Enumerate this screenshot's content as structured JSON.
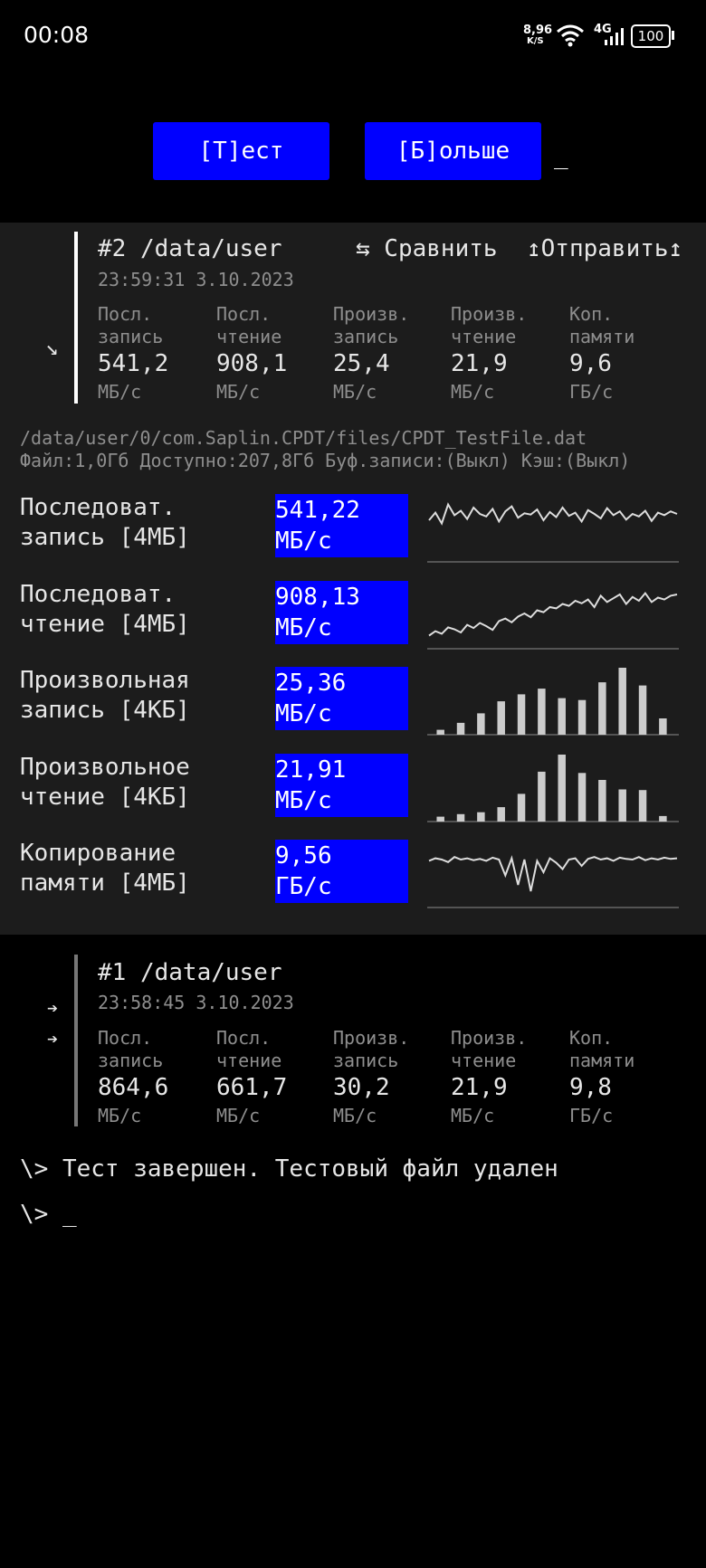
{
  "status_bar": {
    "time": "00:08",
    "net_speed": "8,96",
    "net_unit": "K/S",
    "network": "4G",
    "battery": "100"
  },
  "buttons": [
    "[Т]ест",
    "[Б]ольше"
  ],
  "cursor": "_",
  "current_result": {
    "title": "#2 /data/user",
    "date": "23:59:31 3.10.2023",
    "actions": [
      "⇆ Сравнить",
      "↥Отправить↥"
    ],
    "arrow": "↘",
    "metrics": [
      {
        "label": [
          "Посл.",
          "запись"
        ],
        "value": "541,2",
        "unit": "МБ/с"
      },
      {
        "label": [
          "Посл.",
          "чтение"
        ],
        "value": "908,1",
        "unit": "МБ/с"
      },
      {
        "label": [
          "Произв.",
          "запись"
        ],
        "value": "25,4",
        "unit": "МБ/с"
      },
      {
        "label": [
          "Произв.",
          "чтение"
        ],
        "value": "21,9",
        "unit": "МБ/с"
      },
      {
        "label": [
          "Коп.",
          "памяти"
        ],
        "value": "9,6",
        "unit": "ГБ/с"
      }
    ]
  },
  "file_info": [
    "/data/user/0/com.Saplin.CPDT/files/CPDT_TestFile.dat",
    "Файл:1,0Гб Доступно:207,8Гб Буф.записи:(Выкл) Кэш:(Выкл)"
  ],
  "tests": [
    {
      "label": [
        "Последоват.",
        "запись [4МБ]"
      ],
      "result": [
        "541,22",
        "МБ/с"
      ],
      "chart": {
        "type": "line",
        "ylim": [
          0,
          100
        ],
        "values": [
          60,
          72,
          55,
          85,
          68,
          75,
          62,
          80,
          70,
          66,
          78,
          58,
          74,
          82,
          64,
          71,
          69,
          77,
          60,
          73,
          65,
          80,
          67,
          72,
          58,
          76,
          70,
          63,
          79,
          68,
          74,
          61,
          70,
          66,
          75,
          59,
          72,
          68,
          74,
          70
        ]
      }
    },
    {
      "label": [
        "Последоват.",
        "чтение [4МБ]"
      ],
      "result": [
        "908,13",
        "МБ/с"
      ],
      "chart": {
        "type": "line",
        "ylim": [
          0,
          100
        ],
        "values": [
          15,
          22,
          18,
          28,
          25,
          20,
          32,
          27,
          35,
          30,
          24,
          38,
          42,
          36,
          45,
          50,
          44,
          55,
          52,
          60,
          58,
          65,
          62,
          70,
          66,
          72,
          60,
          78,
          68,
          74,
          80,
          65,
          76,
          70,
          82,
          68,
          75,
          72,
          78,
          80
        ]
      }
    },
    {
      "label": [
        "Произвольная",
        "запись [4КБ]"
      ],
      "result": [
        "25,36",
        "МБ/с"
      ],
      "chart": {
        "type": "bar",
        "ylim": [
          0,
          100
        ],
        "values": [
          2,
          13,
          28,
          47,
          58,
          67,
          52,
          49,
          77,
          100,
          72,
          20
        ]
      }
    },
    {
      "label": [
        "Произвольное",
        "чтение [4КБ]"
      ],
      "result": [
        "21,91",
        "МБ/с"
      ],
      "chart": {
        "type": "bar",
        "ylim": [
          0,
          100
        ],
        "values": [
          2,
          6,
          9,
          17,
          38,
          73,
          100,
          71,
          60,
          45,
          44,
          3
        ]
      }
    },
    {
      "label": [
        "Копирование",
        "памяти [4МБ]"
      ],
      "result": [
        "9,56",
        "ГБ/с"
      ],
      "chart": {
        "type": "line",
        "ylim": [
          0,
          100
        ],
        "values": [
          68,
          72,
          70,
          66,
          74,
          70,
          72,
          69,
          71,
          68,
          73,
          70,
          45,
          72,
          30,
          70,
          20,
          68,
          50,
          72,
          65,
          55,
          70,
          72,
          60,
          71,
          74,
          70,
          72,
          68,
          73,
          71,
          70,
          74,
          69,
          72,
          70,
          73,
          71,
          72
        ]
      }
    }
  ],
  "previous_result": {
    "title": "#1 /data/user",
    "date": "23:58:45 3.10.2023",
    "arrows": [
      "➔",
      "➔"
    ],
    "metrics": [
      {
        "label": [
          "Посл.",
          "запись"
        ],
        "value": "864,6",
        "unit": "МБ/с"
      },
      {
        "label": [
          "Посл.",
          "чтение"
        ],
        "value": "661,7",
        "unit": "МБ/с"
      },
      {
        "label": [
          "Произв.",
          "запись"
        ],
        "value": "30,2",
        "unit": "МБ/с"
      },
      {
        "label": [
          "Произв.",
          "чтение"
        ],
        "value": "21,9",
        "unit": "МБ/с"
      },
      {
        "label": [
          "Коп.",
          "памяти"
        ],
        "value": "9,8",
        "unit": "ГБ/с"
      }
    ]
  },
  "console": [
    "\\> Тест завершен. Тестовый файл удален",
    "\\> _"
  ]
}
